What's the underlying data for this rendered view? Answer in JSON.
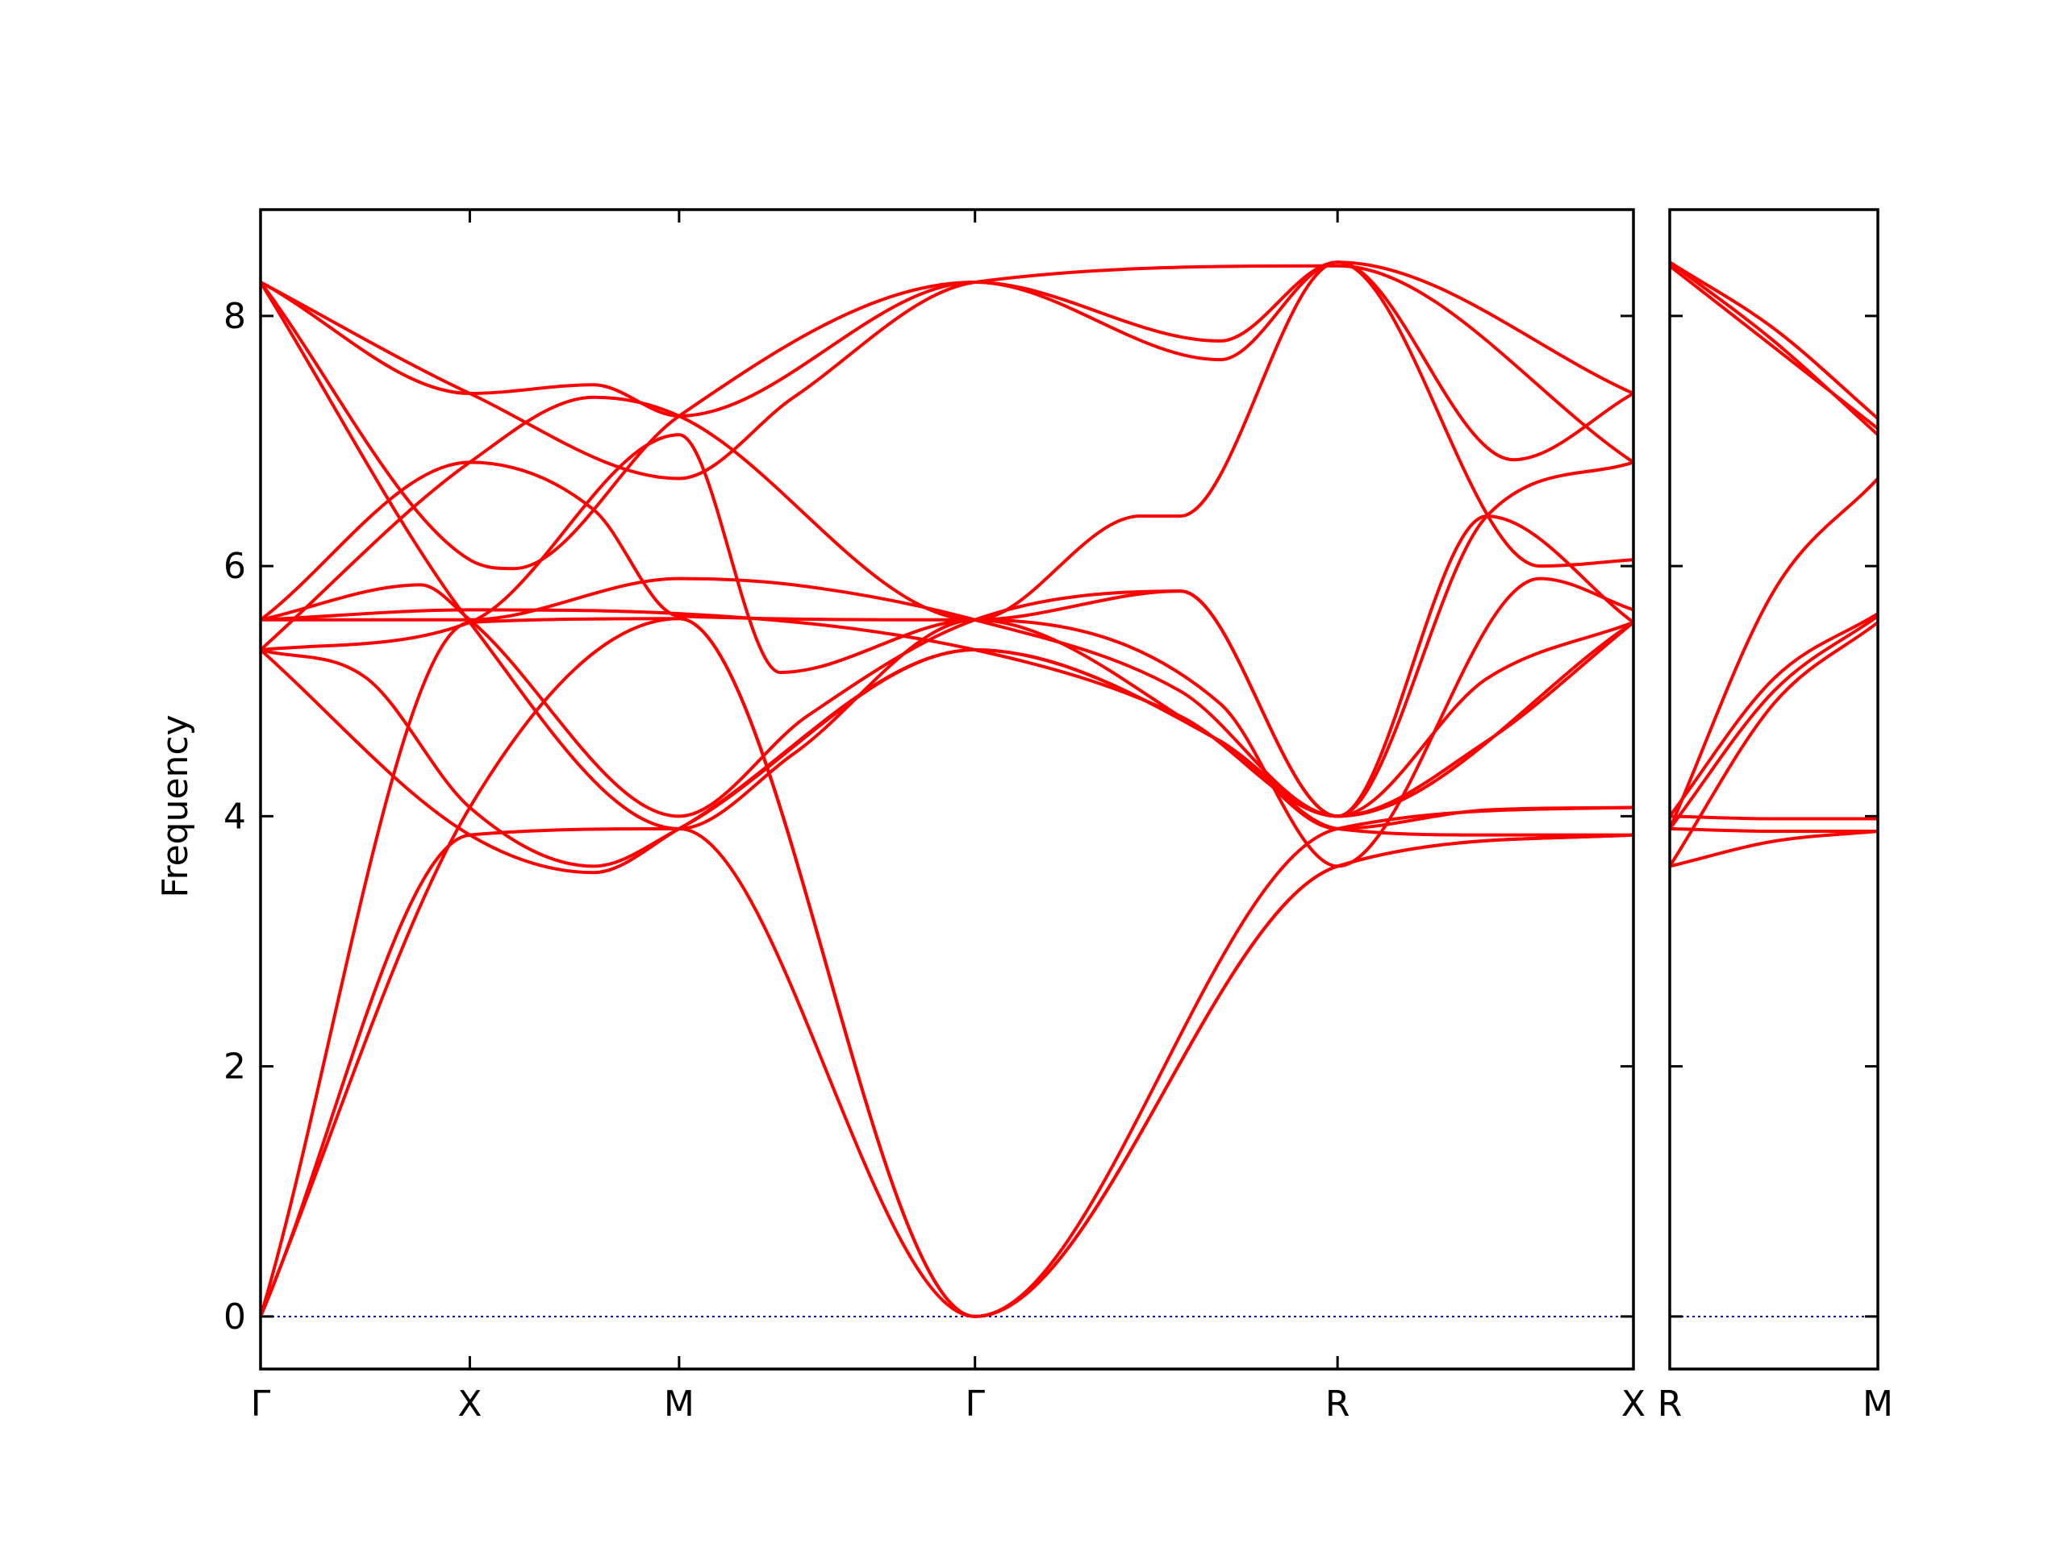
{
  "chart_data": {
    "type": "line",
    "title": "",
    "xlabel": "",
    "ylabel": "Frequency",
    "grid": false,
    "legend": "none",
    "line_color": "#ff0000",
    "zero_line_color": "#0000aa",
    "ylim": [
      -0.42,
      8.85
    ],
    "yticks": [
      0,
      2,
      4,
      6,
      8
    ],
    "panels": [
      {
        "xlim": [
          0,
          5.15
        ],
        "xticks": [
          {
            "x": 0,
            "label": "Γ"
          },
          {
            "x": 0.785,
            "label": "X"
          },
          {
            "x": 1.57,
            "label": "M"
          },
          {
            "x": 2.68,
            "label": "Γ"
          },
          {
            "x": 4.04,
            "label": "R"
          },
          {
            "x": 5.15,
            "label": "X"
          }
        ],
        "series": [
          {
            "x": [
              0,
              0.785,
              1.57,
              2.68,
              4.04,
              5.15
            ],
            "y": [
              0,
              3.85,
              3.9,
              0,
              3.6,
              3.85
            ]
          },
          {
            "x": [
              0,
              0.785,
              1.57,
              2.68,
              4.04,
              5.15
            ],
            "y": [
              0,
              4.07,
              5.58,
              0,
              3.6,
              3.85
            ]
          },
          {
            "x": [
              0,
              0.785,
              1.57,
              2.68,
              4.04,
              5.15
            ],
            "y": [
              0,
              5.55,
              5.58,
              0,
              3.9,
              4.07
            ]
          },
          {
            "x": [
              0,
              0.4,
              0.785,
              1.25,
              1.57,
              2.68,
              3.6,
              4.04,
              4.6,
              5.15
            ],
            "y": [
              5.33,
              5.1,
              4.07,
              3.6,
              3.9,
              5.33,
              4.6,
              3.9,
              3.85,
              3.85
            ]
          },
          {
            "x": [
              0,
              0.785,
              1.25,
              1.57,
              2.68,
              3.6,
              4.04,
              4.6,
              5.15
            ],
            "y": [
              5.33,
              3.85,
              3.55,
              3.9,
              5.33,
              4.6,
              3.9,
              4.05,
              4.07
            ]
          },
          {
            "x": [
              0,
              0.6,
              0.785,
              1.57,
              2.05,
              2.68,
              3.45,
              4.04,
              4.6,
              5.15
            ],
            "y": [
              5.57,
              5.85,
              5.57,
              4.0,
              4.8,
              5.57,
              5.8,
              4.0,
              5.1,
              5.55
            ]
          },
          {
            "x": [
              0,
              0.785,
              1.57,
              2.68,
              3.45,
              4.04,
              4.6,
              5.15
            ],
            "y": [
              5.57,
              5.65,
              5.62,
              5.33,
              4.8,
              4.0,
              6.4,
              5.55
            ]
          },
          {
            "x": [
              0,
              0.785,
              1.25,
              1.57,
              2.68,
              3.45,
              4.04,
              4.6,
              5.15
            ],
            "y": [
              5.57,
              6.83,
              6.45,
              5.6,
              5.57,
              5.8,
              4.0,
              6.4,
              6.83
            ]
          },
          {
            "x": [
              0,
              0.785,
              1.57,
              2.0,
              2.68,
              3.6,
              4.04,
              4.6,
              5.15
            ],
            "y": [
              8.27,
              5.55,
              3.9,
              4.5,
              5.57,
              4.6,
              4.0,
              4.6,
              5.55
            ]
          },
          {
            "x": [
              0,
              0.785,
              0.95,
              1.57,
              2.68,
              3.6,
              4.04,
              4.7,
              5.15
            ],
            "y": [
              8.27,
              6.05,
              5.98,
              7.2,
              8.27,
              7.8,
              8.43,
              6.85,
              7.38
            ]
          },
          {
            "x": [
              0,
              0.785,
              1.25,
              1.57,
              2.68,
              3.6,
              4.04,
              4.8,
              5.15
            ],
            "y": [
              8.27,
              7.38,
              7.45,
              7.2,
              8.27,
              7.65,
              8.43,
              6.0,
              6.05
            ]
          },
          {
            "x": [
              0,
              0.785,
              1.25,
              1.57,
              2.68,
              3.3,
              3.45,
              4.04,
              5.15
            ],
            "y": [
              5.33,
              6.83,
              7.35,
              7.2,
              5.57,
              6.4,
              6.4,
              8.43,
              7.38
            ]
          },
          {
            "x": [
              0,
              0.785,
              1.57,
              2.0,
              2.68,
              4.04,
              5.15
            ],
            "y": [
              8.27,
              7.38,
              6.7,
              7.35,
              8.27,
              8.4,
              6.83
            ]
          },
          {
            "x": [
              0,
              0.785,
              1.57,
              1.95,
              2.68,
              3.6,
              4.04,
              4.8,
              5.15
            ],
            "y": [
              5.33,
              5.55,
              7.05,
              5.15,
              5.57,
              4.9,
              3.6,
              5.9,
              5.65
            ]
          },
          {
            "x": [
              0,
              0.785,
              1.57,
              2.0,
              2.68,
              3.45,
              4.04,
              5.15
            ],
            "y": [
              5.57,
              5.57,
              5.9,
              5.85,
              5.57,
              5.0,
              4.0,
              5.55
            ]
          }
        ]
      },
      {
        "xlim": [
          0,
          1
        ],
        "xticks": [
          {
            "x": 0,
            "label": "R"
          },
          {
            "x": 1,
            "label": "M"
          }
        ],
        "series": [
          {
            "x": [
              0,
              0.5,
              1
            ],
            "y": [
              3.6,
              3.8,
              3.88
            ]
          },
          {
            "x": [
              0,
              0.5,
              1
            ],
            "y": [
              3.9,
              3.88,
              3.88
            ]
          },
          {
            "x": [
              0,
              0.5,
              1
            ],
            "y": [
              4.0,
              3.98,
              3.98
            ]
          },
          {
            "x": [
              0,
              0.5,
              1
            ],
            "y": [
              3.6,
              4.9,
              5.55
            ]
          },
          {
            "x": [
              0,
              0.5,
              1
            ],
            "y": [
              3.9,
              5.0,
              5.6
            ]
          },
          {
            "x": [
              0,
              0.5,
              1
            ],
            "y": [
              4.0,
              5.1,
              5.62
            ]
          },
          {
            "x": [
              0,
              0.5,
              1
            ],
            "y": [
              3.9,
              5.8,
              6.7
            ]
          },
          {
            "x": [
              0,
              0.5,
              1
            ],
            "y": [
              8.43,
              7.8,
              7.05
            ]
          },
          {
            "x": [
              0,
              0.5,
              1
            ],
            "y": [
              8.4,
              7.75,
              7.1
            ]
          },
          {
            "x": [
              0,
              0.5,
              1
            ],
            "y": [
              8.43,
              7.9,
              7.18
            ]
          }
        ]
      }
    ]
  }
}
